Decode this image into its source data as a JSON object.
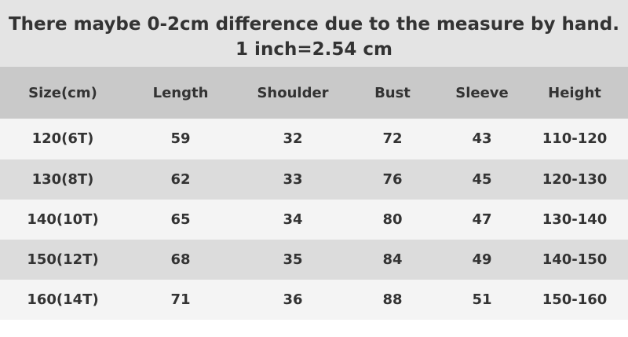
{
  "header": {
    "lines": [
      "There maybe 0-2cm difference due to the measure by hand.",
      "1 inch=2.54 cm"
    ]
  },
  "table": {
    "columns": [
      "Size(cm)",
      "Length",
      "Shoulder",
      "Bust",
      "Sleeve",
      "Height"
    ],
    "rows": [
      [
        "120(6T)",
        59,
        32,
        72,
        43,
        "110-120"
      ],
      [
        "130(8T)",
        62,
        33,
        76,
        45,
        "120-130"
      ],
      [
        "140(10T)",
        65,
        34,
        80,
        47,
        "130-140"
      ],
      [
        "150(12T)",
        68,
        35,
        84,
        49,
        "140-150"
      ],
      [
        "160(14T)",
        71,
        36,
        88,
        51,
        "150-160"
      ]
    ]
  }
}
